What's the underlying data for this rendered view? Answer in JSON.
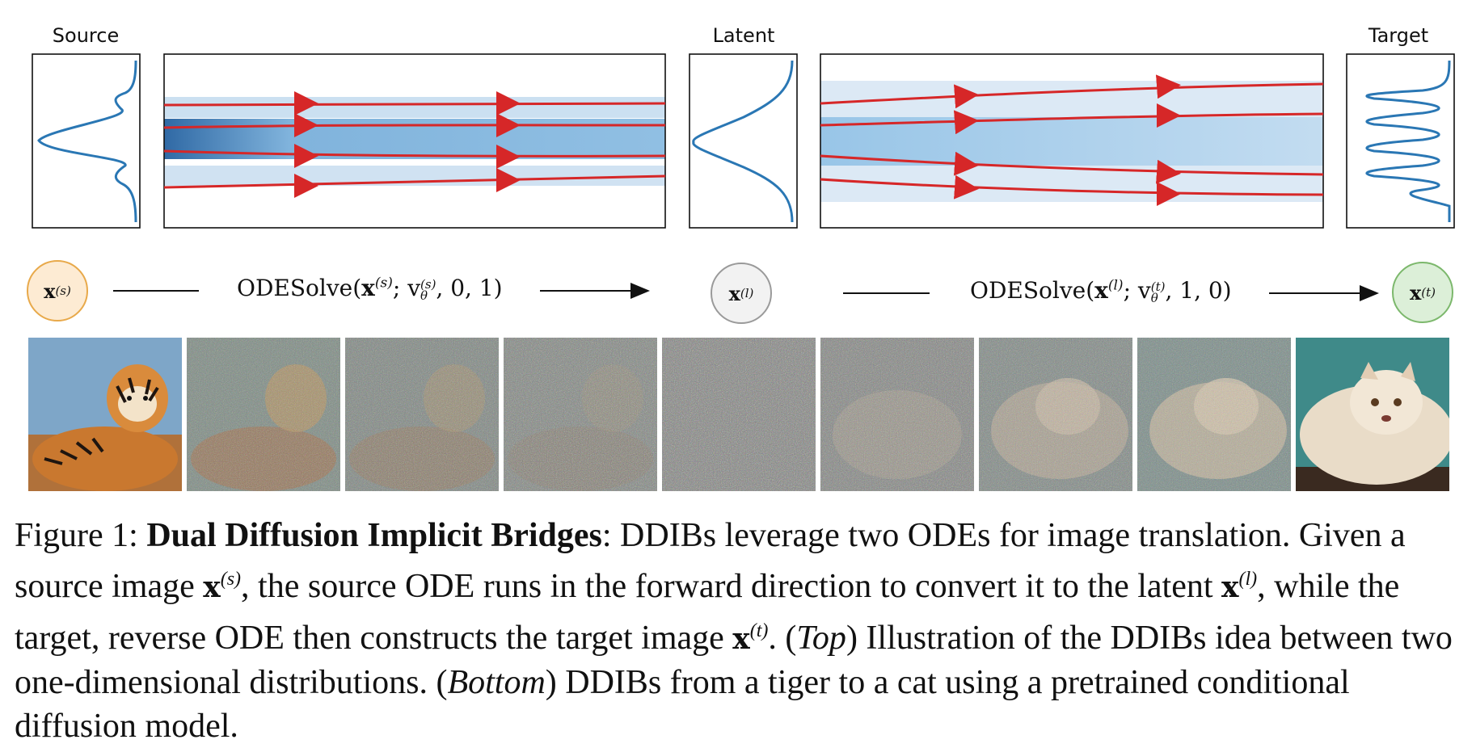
{
  "top_row": {
    "source_label": "Source",
    "latent_label": "Latent",
    "target_label": "Target"
  },
  "middle_row": {
    "node_source_symbol": "x",
    "node_source_sup": "(s)",
    "node_latent_symbol": "x",
    "node_latent_sup": "(l)",
    "node_target_symbol": "x",
    "node_target_sup": "(t)",
    "ode1_prefix": "ODESolve(",
    "ode1_x": "x",
    "ode1_x_sup": "(s)",
    "ode1_v": "; v",
    "ode1_v_sup": "(s)",
    "ode1_v_sub": "θ",
    "ode1_suffix": ", 0, 1)",
    "ode2_prefix": "ODESolve(",
    "ode2_x": "x",
    "ode2_x_sup": "(l)",
    "ode2_v": "; v",
    "ode2_v_sup": "(t)",
    "ode2_v_sub": "θ",
    "ode2_suffix": ", 1, 0)",
    "colors": {
      "source_fill": "#fdebd3",
      "source_stroke": "#e8a94a",
      "latent_fill": "#f2f2f2",
      "latent_stroke": "#9a9a9a",
      "target_fill": "#dcefd8",
      "target_stroke": "#7cb86c"
    }
  },
  "bottom_row": {
    "frames": [
      "tiger",
      "noisy-tiger-1",
      "noisy-tiger-2",
      "noisy-tiger-3",
      "pure-noise",
      "noisy-cat-3",
      "noisy-cat-2",
      "noisy-cat-1",
      "cat"
    ]
  },
  "caption": {
    "prefix": "Figure 1: ",
    "title": "Dual Diffusion Implicit Bridges",
    "t1": ": DDIBs leverage two ODEs for image translation. Given a source image ",
    "x_s": "x",
    "x_s_sup": "(s)",
    "t2": ", the source ODE runs in the forward direction to convert it to the latent ",
    "x_l": "x",
    "x_l_sup": "(l)",
    "t3": ", while the target, reverse ODE then constructs the target image ",
    "x_t": "x",
    "x_t_sup": "(t)",
    "t4": ". (",
    "top": "Top",
    "t5": ") Illustration of the DDIBs idea between two one-dimensional distributions. (",
    "bottom": "Bottom",
    "t6": ") DDIBs from a tiger to a cat using a pretrained conditional diffusion model."
  },
  "colors": {
    "curve_blue": "#2a77b4",
    "flow_red": "#d62728",
    "field_blue": "#1f6fb0"
  }
}
